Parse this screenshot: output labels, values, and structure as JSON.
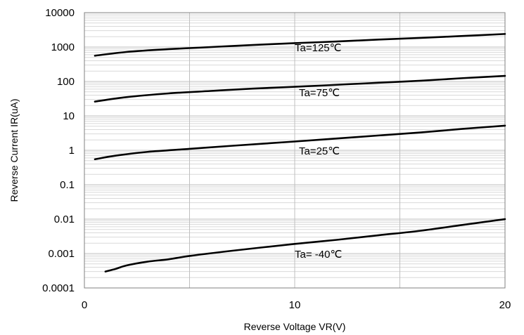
{
  "chart_data": {
    "type": "line",
    "title": "",
    "xlabel": "Reverse Voltage   VR(V)",
    "ylabel": "Reverse Current   IR(uA)",
    "x_scale": "linear",
    "y_scale": "log",
    "xlim": [
      0,
      20
    ],
    "ylim": [
      0.0001,
      10000
    ],
    "x_ticks": [
      "0",
      "10",
      "20"
    ],
    "y_ticks": [
      "0.0001",
      "0.001",
      "0.01",
      "0.1",
      "1",
      "10",
      "100",
      "1000",
      "10000"
    ],
    "grid": true,
    "legend": "none",
    "colors": {
      "line": "#000000",
      "grid_major": "#bfbfbf",
      "grid_minor": "#d9d9d9"
    },
    "series": [
      {
        "name": "Ta=125℃",
        "points": [
          [
            0.5,
            560
          ],
          [
            2,
            720
          ],
          [
            4,
            870
          ],
          [
            6,
            1000
          ],
          [
            8,
            1150
          ],
          [
            10,
            1300
          ],
          [
            12,
            1450
          ],
          [
            14,
            1650
          ],
          [
            16,
            1850
          ],
          [
            18,
            2100
          ],
          [
            20,
            2400
          ]
        ]
      },
      {
        "name": "Ta=75℃",
        "points": [
          [
            0.5,
            26
          ],
          [
            2,
            35
          ],
          [
            4,
            45
          ],
          [
            6,
            53
          ],
          [
            8,
            62
          ],
          [
            10,
            70
          ],
          [
            12,
            80
          ],
          [
            14,
            92
          ],
          [
            16,
            105
          ],
          [
            18,
            125
          ],
          [
            20,
            145
          ]
        ]
      },
      {
        "name": "Ta=25℃",
        "points": [
          [
            0.5,
            0.55
          ],
          [
            1.5,
            0.7
          ],
          [
            3,
            0.9
          ],
          [
            5,
            1.1
          ],
          [
            7,
            1.35
          ],
          [
            10,
            1.8
          ],
          [
            12,
            2.2
          ],
          [
            14,
            2.7
          ],
          [
            16,
            3.3
          ],
          [
            18,
            4.2
          ],
          [
            20,
            5.2
          ]
        ]
      },
      {
        "name": "Ta= -40℃",
        "points": [
          [
            1,
            0.0003
          ],
          [
            1.5,
            0.00036
          ],
          [
            2,
            0.00045
          ],
          [
            3,
            0.00058
          ],
          [
            4,
            0.00068
          ],
          [
            5,
            0.00085
          ],
          [
            7,
            0.0012
          ],
          [
            10,
            0.0019
          ],
          [
            12,
            0.0025
          ],
          [
            14,
            0.0034
          ],
          [
            16,
            0.0046
          ],
          [
            18,
            0.0068
          ],
          [
            20,
            0.01
          ]
        ]
      }
    ],
    "annotations": [
      {
        "text": "Ta=125℃",
        "x": 10,
        "y": 1000
      },
      {
        "text": "Ta=75℃",
        "x": 10.2,
        "y": 50
      },
      {
        "text": "Ta=25℃",
        "x": 10.2,
        "y": 1
      },
      {
        "text": "Ta= -40℃",
        "x": 10,
        "y": 0.001
      }
    ]
  }
}
